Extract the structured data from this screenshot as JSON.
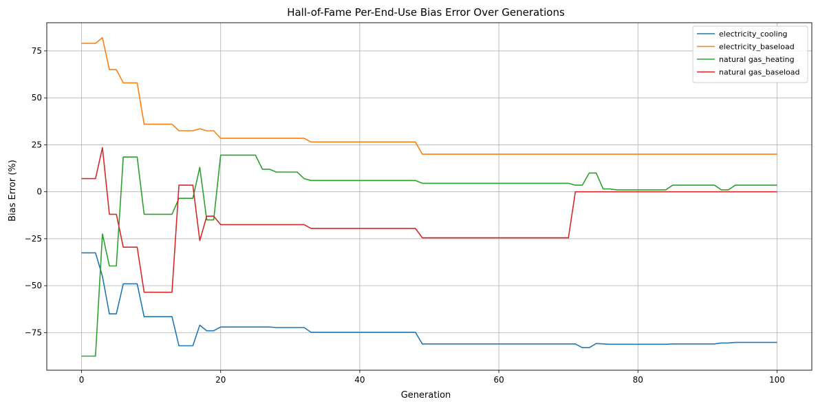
{
  "chart_data": {
    "type": "line",
    "title": "Hall-of-Fame Per-End-Use Bias Error Over Generations",
    "xlabel": "Generation",
    "ylabel": "Bias Error (%)",
    "xlim": [
      -5,
      105
    ],
    "ylim": [
      -95,
      90
    ],
    "xticks": [
      0,
      20,
      40,
      60,
      80,
      100
    ],
    "yticks": [
      -75,
      -50,
      -25,
      0,
      25,
      50,
      75
    ],
    "xtick_labels": [
      "0",
      "20",
      "40",
      "60",
      "80",
      "100"
    ],
    "ytick_labels": [
      "−75",
      "−50",
      "−25",
      "0",
      "25",
      "50",
      "75"
    ],
    "grid": true,
    "legend_position": "top-right",
    "series": [
      {
        "name": "electricity_cooling",
        "color": "#1f77b4",
        "points": [
          [
            0,
            -32.5
          ],
          [
            2,
            -32.5
          ],
          [
            3,
            -45
          ],
          [
            4,
            -65
          ],
          [
            5,
            -65
          ],
          [
            6,
            -49
          ],
          [
            8,
            -49
          ],
          [
            9,
            -66.5
          ],
          [
            13,
            -66.5
          ],
          [
            14,
            -82
          ],
          [
            16,
            -82
          ],
          [
            17,
            -71
          ],
          [
            18,
            -74
          ],
          [
            19,
            -74
          ],
          [
            20,
            -72
          ],
          [
            27,
            -72
          ],
          [
            28,
            -72.3
          ],
          [
            32,
            -72.3
          ],
          [
            33,
            -74.8
          ],
          [
            48,
            -74.8
          ],
          [
            49,
            -81
          ],
          [
            71,
            -81
          ],
          [
            72,
            -83
          ],
          [
            73,
            -83
          ],
          [
            74,
            -80.8
          ],
          [
            76,
            -81.2
          ],
          [
            84,
            -81.2
          ],
          [
            85,
            -81
          ],
          [
            91,
            -81
          ],
          [
            92,
            -80.5
          ],
          [
            93,
            -80.5
          ],
          [
            94,
            -80.2
          ],
          [
            100,
            -80.2
          ]
        ]
      },
      {
        "name": "electricity_baseload",
        "color": "#ff7f0e",
        "points": [
          [
            0,
            79
          ],
          [
            2,
            79
          ],
          [
            3,
            82
          ],
          [
            4,
            65
          ],
          [
            5,
            65
          ],
          [
            6,
            58
          ],
          [
            8,
            58
          ],
          [
            9,
            36
          ],
          [
            13,
            36
          ],
          [
            14,
            32.5
          ],
          [
            16,
            32.5
          ],
          [
            17,
            33.5
          ],
          [
            18,
            32.5
          ],
          [
            19,
            32.5
          ],
          [
            20,
            28.5
          ],
          [
            32,
            28.5
          ],
          [
            33,
            26.5
          ],
          [
            48,
            26.5
          ],
          [
            49,
            20
          ],
          [
            100,
            20
          ]
        ]
      },
      {
        "name": "natural gas_heating",
        "color": "#2ca02c",
        "points": [
          [
            0,
            -87.5
          ],
          [
            2,
            -87.5
          ],
          [
            3,
            -22.5
          ],
          [
            4,
            -39.5
          ],
          [
            5,
            -39.5
          ],
          [
            6,
            18.5
          ],
          [
            8,
            18.5
          ],
          [
            9,
            -12
          ],
          [
            13,
            -12
          ],
          [
            14,
            -3.5
          ],
          [
            16,
            -3.5
          ],
          [
            17,
            13
          ],
          [
            18,
            -15
          ],
          [
            19,
            -15
          ],
          [
            20,
            19.5
          ],
          [
            25,
            19.5
          ],
          [
            26,
            12
          ],
          [
            27,
            12
          ],
          [
            28,
            10.5
          ],
          [
            31,
            10.5
          ],
          [
            32,
            7
          ],
          [
            33,
            6
          ],
          [
            48,
            6
          ],
          [
            49,
            4.5
          ],
          [
            70,
            4.5
          ],
          [
            71,
            3.5
          ],
          [
            72,
            3.5
          ],
          [
            73,
            10
          ],
          [
            74,
            10
          ],
          [
            75,
            1.5
          ],
          [
            76,
            1.5
          ],
          [
            77,
            1
          ],
          [
            84,
            1
          ],
          [
            85,
            3.5
          ],
          [
            91,
            3.5
          ],
          [
            92,
            1
          ],
          [
            93,
            1
          ],
          [
            94,
            3.5
          ],
          [
            100,
            3.5
          ]
        ]
      },
      {
        "name": "natural gas_baseload",
        "color": "#d62728",
        "points": [
          [
            0,
            7
          ],
          [
            2,
            7
          ],
          [
            3,
            23.5
          ],
          [
            4,
            -12
          ],
          [
            5,
            -12
          ],
          [
            6,
            -29.5
          ],
          [
            8,
            -29.5
          ],
          [
            9,
            -53.5
          ],
          [
            13,
            -53.5
          ],
          [
            14,
            3.5
          ],
          [
            16,
            3.5
          ],
          [
            17,
            -26
          ],
          [
            18,
            -13
          ],
          [
            19,
            -13
          ],
          [
            20,
            -17.5
          ],
          [
            32,
            -17.5
          ],
          [
            33,
            -19.5
          ],
          [
            48,
            -19.5
          ],
          [
            49,
            -24.5
          ],
          [
            70,
            -24.5
          ],
          [
            71,
            0
          ],
          [
            100,
            0
          ]
        ]
      }
    ]
  }
}
